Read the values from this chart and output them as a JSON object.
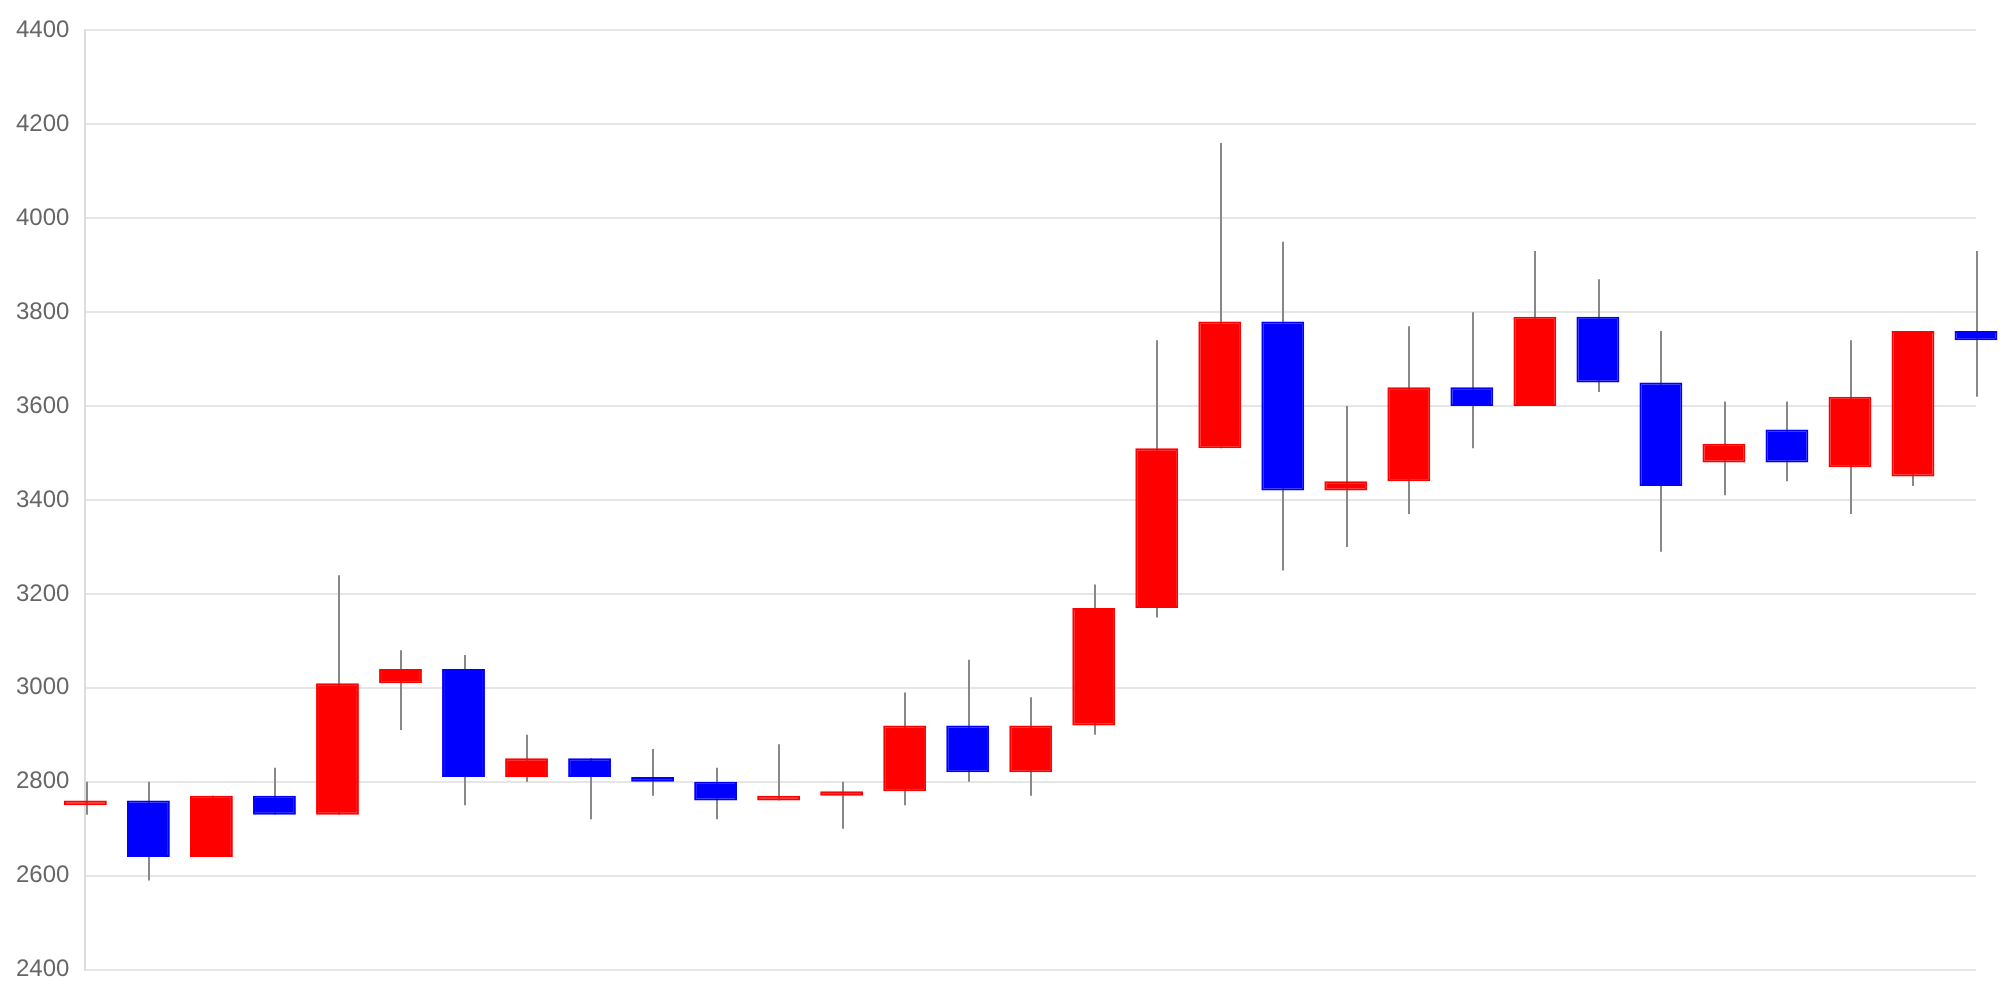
{
  "chart_data": {
    "type": "candlestick",
    "categories": [
      null,
      null,
      null,
      null,
      null,
      null,
      null,
      null,
      null,
      null,
      null,
      null,
      null,
      null,
      null,
      null,
      null,
      null,
      null,
      null,
      null,
      null,
      null,
      null,
      null,
      null,
      null,
      null,
      null,
      null,
      null
    ],
    "ohlc": [
      [
        2750,
        2800,
        2730,
        2760
      ],
      [
        2760,
        2800,
        2590,
        2640
      ],
      [
        2640,
        2770,
        2640,
        2770
      ],
      [
        2770,
        2830,
        2730,
        2730
      ],
      [
        2730,
        3240,
        2730,
        3010
      ],
      [
        3010,
        3080,
        2910,
        3040
      ],
      [
        3040,
        3070,
        2750,
        2810
      ],
      [
        2810,
        2900,
        2800,
        2850
      ],
      [
        2850,
        2850,
        2720,
        2810
      ],
      [
        2810,
        2870,
        2770,
        2800
      ],
      [
        2800,
        2830,
        2720,
        2760
      ],
      [
        2760,
        2880,
        2760,
        2770
      ],
      [
        2770,
        2800,
        2700,
        2780
      ],
      [
        2780,
        2990,
        2750,
        2920
      ],
      [
        2920,
        3060,
        2800,
        2820
      ],
      [
        2820,
        2980,
        2770,
        2920
      ],
      [
        2920,
        3220,
        2900,
        3170
      ],
      [
        3170,
        3740,
        3150,
        3510
      ],
      [
        3510,
        4160,
        3510,
        3780
      ],
      [
        3780,
        3950,
        3250,
        3420
      ],
      [
        3420,
        3600,
        3300,
        3440
      ],
      [
        3440,
        3770,
        3370,
        3640
      ],
      [
        3640,
        3800,
        3510,
        3600
      ],
      [
        3600,
        3930,
        3600,
        3790
      ],
      [
        3790,
        3870,
        3630,
        3650
      ],
      [
        3650,
        3760,
        3290,
        3430
      ],
      [
        3480,
        3610,
        3410,
        3520
      ],
      [
        3550,
        3610,
        3440,
        3480
      ],
      [
        3470,
        3740,
        3370,
        3620
      ],
      [
        3450,
        3760,
        3430,
        3760
      ],
      [
        3760,
        3930,
        3620,
        3740
      ]
    ],
    "colors": [
      "#ff0000",
      "#0000ff",
      "#ff0000",
      "#0000ff",
      "#ff0000",
      "#ff0000",
      "#0000ff",
      "#ff0000",
      "#0000ff",
      "#0000ff",
      "#0000ff",
      "#ff0000",
      "#ff0000",
      "#ff0000",
      "#0000ff",
      "#ff0000",
      "#ff0000",
      "#ff0000",
      "#ff0000",
      "#0000ff",
      "#ff0000",
      "#ff0000",
      "#0000ff",
      "#ff0000",
      "#0000ff",
      "#0000ff",
      "#ff0000",
      "#0000ff",
      "#ff0000",
      "#ff0000",
      "#0000ff"
    ],
    "ylim": [
      2400,
      4400
    ],
    "yticks": [
      2400,
      2600,
      2800,
      3000,
      3200,
      3400,
      3600,
      3800,
      4000,
      4200,
      4400
    ],
    "grid": "y",
    "legend": false
  }
}
